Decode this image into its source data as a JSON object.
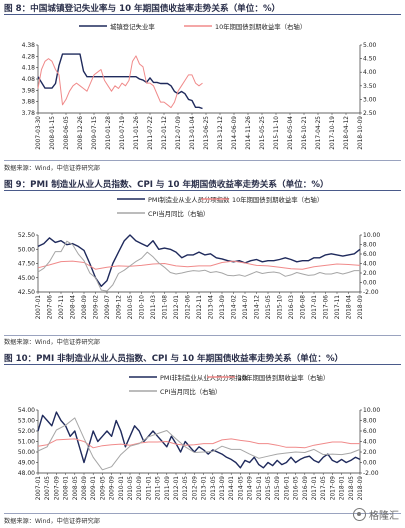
{
  "figures": [
    {
      "title": "图 8：中国城镇登记失业率与 10 年期国债收益率走势关系（单位：%）",
      "source": "数据来源：Wind，中信证券研究部"
    },
    {
      "title": "图 9：PMI 制造业从业人员指数、CPI 与 10 年期国债收益率走势关系（单位：%）",
      "source": "数据来源：Wind，中信证券研究部"
    },
    {
      "title": "图 10：PMI 非制造业从业人员指数、CPI 与 10 年期国债收益率走势关系（单位：%）",
      "source": "数据来源：Wind，中信证券研究部"
    }
  ],
  "watermark": {
    "text": "格隆汇",
    "icon": "circle-logo-icon"
  },
  "colors": {
    "navy": "#1f2a5c",
    "pink": "#f08a8a",
    "gray": "#a6a6a6",
    "axis": "#333333",
    "rule": "#4a5a8a"
  },
  "chart_data": [
    {
      "type": "line",
      "legend_position": "top-center",
      "left_axis": {
        "ylim": [
          3.78,
          4.38
        ],
        "ticks": [
          "3.78",
          "3.88",
          "3.98",
          "4.08",
          "4.18",
          "4.28",
          "4.38"
        ]
      },
      "right_axis": {
        "ylim": [
          2.5,
          5.0
        ],
        "ticks": [
          "2.50",
          "3.00",
          "3.50",
          "4.00",
          "4.50",
          "5.00"
        ]
      },
      "x_ticks": [
        "2007-03-30",
        "2008-01-15",
        "2008-06-05",
        "2008-12-26",
        "2009-07-15",
        "2010-01-28",
        "2010-07-19",
        "2011-01-26",
        "2011-07-22",
        "2012-01-12",
        "2012-07-09",
        "2013-01-04",
        "2013-06-25",
        "2013-12-12",
        "2014-06-09",
        "2014-11-26",
        "2015-05-25",
        "2015-11-10",
        "2016-05-04",
        "2016-10-21",
        "2017-04-25",
        "2017-10-19",
        "2018-04-12",
        "2018-10-09"
      ],
      "series": [
        {
          "name": "城镇登记失业率",
          "axis": "left",
          "color": "#1f2a5c",
          "style": "solid",
          "x": [
            0,
            0.5,
            1,
            1.25,
            1.5,
            1.75,
            2.0,
            2.25,
            2.5,
            2.75,
            3.0,
            3.25,
            3.5,
            3.75,
            4.0,
            4.25,
            4.5,
            4.75,
            5.0,
            5.25,
            5.5,
            5.75,
            6.0,
            6.25,
            6.5,
            6.75,
            7.0,
            7.25,
            7.5,
            7.75,
            8.0,
            8.25,
            8.5,
            8.75,
            9.0,
            9.25,
            9.5,
            9.75,
            10.0,
            10.25,
            10.5,
            10.75,
            11.0,
            11.25,
            11.5,
            11.75
          ],
          "values": [
            4.1,
            4.0,
            4.0,
            4.04,
            4.2,
            4.3,
            4.3,
            4.3,
            4.3,
            4.3,
            4.3,
            4.15,
            4.1,
            4.1,
            4.1,
            4.1,
            4.1,
            4.1,
            4.1,
            4.1,
            4.1,
            4.1,
            4.1,
            4.1,
            4.1,
            4.1,
            4.1,
            4.08,
            4.07,
            4.05,
            4.09,
            4.05,
            4.05,
            4.04,
            4.04,
            4.04,
            4.02,
            3.97,
            3.95,
            3.97,
            3.95,
            3.9,
            3.89,
            3.83,
            3.83,
            3.82
          ]
        },
        {
          "name": "10年期国债到期收益率（右轴）",
          "axis": "right",
          "color": "#f08a8a",
          "style": "solid",
          "x": [
            0,
            0.25,
            0.5,
            0.75,
            1.0,
            1.25,
            1.5,
            1.75,
            2.0,
            2.25,
            2.5,
            2.75,
            3.0,
            3.25,
            3.5,
            3.75,
            4.0,
            4.25,
            4.5,
            4.75,
            5.0,
            5.25,
            5.5,
            5.75,
            6.0,
            6.25,
            6.5,
            6.75,
            7.0,
            7.25,
            7.5,
            7.75,
            8.0,
            8.25,
            8.5,
            8.75,
            9.0,
            9.25,
            9.5,
            9.75,
            10.0,
            10.25,
            10.5,
            10.75,
            11.0,
            11.25,
            11.5,
            11.75
          ],
          "values": [
            3.4,
            4.1,
            4.4,
            4.5,
            4.4,
            4.1,
            3.9,
            2.8,
            3.0,
            3.3,
            3.5,
            3.6,
            3.5,
            3.4,
            3.3,
            3.6,
            3.9,
            4.0,
            4.1,
            3.7,
            3.5,
            3.3,
            3.5,
            3.4,
            3.6,
            3.5,
            3.7,
            4.4,
            4.6,
            4.3,
            4.2,
            3.6,
            3.6,
            3.5,
            3.2,
            2.9,
            2.9,
            2.8,
            2.7,
            2.9,
            3.3,
            3.5,
            3.7,
            3.9,
            3.9,
            3.6,
            3.5,
            3.6
          ]
        }
      ]
    },
    {
      "type": "line",
      "legend_position": "top-center",
      "left_axis": {
        "ylim": [
          42.5,
          52.5
        ],
        "ticks": [
          "42.50",
          "45.00",
          "47.50",
          "50.00",
          "52.50"
        ]
      },
      "right_axis": {
        "ylim": [
          -2.0,
          10.0
        ],
        "ticks": [
          "-2.00",
          "0.00",
          "2.00",
          "4.00",
          "6.00",
          "8.00",
          "10.00"
        ]
      },
      "x_ticks": [
        "2007-01",
        "2007-06",
        "2007-11",
        "2008-04",
        "2008-09",
        "2009-02",
        "2009-07",
        "2009-12",
        "2010-05",
        "2010-10",
        "2011-03",
        "2011-08",
        "2012-01",
        "2012-06",
        "2012-11",
        "2013-04",
        "2013-09",
        "2014-02",
        "2014-07",
        "2014-12",
        "2015-05",
        "2015-10",
        "2016-03",
        "2016-08",
        "2017-01",
        "2017-06",
        "2017-11",
        "2018-04",
        "2018-09"
      ],
      "series": [
        {
          "name": "PMI制造业从业人员分项指数",
          "axis": "left",
          "color": "#1f2a5c",
          "style": "solid",
          "x": [
            0,
            0.5,
            1,
            1.5,
            2,
            2.5,
            3,
            3.5,
            4,
            4.5,
            5,
            5.5,
            6,
            6.5,
            7,
            7.5,
            8,
            8.5,
            9,
            9.5,
            10,
            10.5,
            11,
            11.5,
            12,
            12.5,
            13,
            13.5,
            14,
            14.5,
            15,
            15.5,
            16,
            16.5,
            17,
            17.5,
            18,
            18.5,
            19,
            19.5,
            20,
            20.5,
            21,
            21.5,
            22,
            22.5,
            23,
            23.5,
            24,
            24.5,
            25,
            25.5,
            26,
            26.5,
            27,
            27.5,
            28
          ],
          "values": [
            50.5,
            51.0,
            52.0,
            51.2,
            51.5,
            50.8,
            51.0,
            50.5,
            49.8,
            47.5,
            45.0,
            43.5,
            44.5,
            47.5,
            49.5,
            51.5,
            52.5,
            51.5,
            51.0,
            50.5,
            51.5,
            50.0,
            50.2,
            50.0,
            49.5,
            48.5,
            49.0,
            49.0,
            49.5,
            49.0,
            49.2,
            48.5,
            48.3,
            48.0,
            47.8,
            48.0,
            47.6,
            48.0,
            48.2,
            47.8,
            48.0,
            48.0,
            48.2,
            48.5,
            48.2,
            47.8,
            48.0,
            48.0,
            48.5,
            48.5,
            49.0,
            49.2,
            49.0,
            48.8,
            49.0,
            49.2,
            50.0
          ]
        },
        {
          "name": "10年期国债到期收益率（右轴）",
          "axis": "right",
          "color": "#f08a8a",
          "style": "solid",
          "x": [
            0,
            1,
            2,
            3,
            4,
            5,
            6,
            7,
            8,
            9,
            10,
            11,
            12,
            13,
            14,
            15,
            16,
            17,
            18,
            19,
            20,
            21,
            22,
            23,
            24,
            25,
            26,
            27,
            28
          ],
          "values": [
            3.1,
            3.7,
            4.4,
            4.5,
            4.2,
            2.8,
            3.2,
            3.5,
            3.4,
            3.6,
            3.9,
            4.0,
            3.5,
            3.3,
            3.5,
            3.5,
            4.2,
            4.5,
            4.1,
            3.6,
            3.5,
            3.2,
            2.9,
            2.8,
            3.3,
            3.6,
            3.9,
            3.8,
            3.6
          ]
        },
        {
          "name": "CPI当月同比（右轴）",
          "axis": "right",
          "color": "#a6a6a6",
          "style": "solid",
          "x": [
            0,
            0.5,
            1,
            1.5,
            2,
            2.5,
            3,
            3.5,
            4,
            4.5,
            5,
            5.5,
            6,
            6.5,
            7,
            7.5,
            8,
            8.5,
            9,
            9.5,
            10,
            10.5,
            11,
            11.5,
            12,
            12.5,
            13,
            13.5,
            14,
            14.5,
            15,
            15.5,
            16,
            16.5,
            17,
            17.5,
            18,
            18.5,
            19,
            19.5,
            20,
            20.5,
            21,
            21.5,
            22,
            22.5,
            23,
            23.5,
            24,
            24.5,
            25,
            25.5,
            26,
            26.5,
            27,
            27.5,
            28
          ],
          "values": [
            2.2,
            3.0,
            4.4,
            6.5,
            6.5,
            8.7,
            8.0,
            6.0,
            4.6,
            2.0,
            1.0,
            -1.6,
            -1.8,
            -0.5,
            1.9,
            2.6,
            3.5,
            4.4,
            5.1,
            6.4,
            5.4,
            4.1,
            3.2,
            2.1,
            1.8,
            2.0,
            2.3,
            2.5,
            2.4,
            2.6,
            2.1,
            2.3,
            2.0,
            1.5,
            1.4,
            1.6,
            1.3,
            1.8,
            2.3,
            1.9,
            2.1,
            2.2,
            2.0,
            1.3,
            1.6,
            2.1,
            1.8,
            1.5,
            1.6,
            2.1,
            1.8,
            1.8,
            2.1,
            1.8,
            2.1,
            2.5,
            2.5
          ]
        }
      ]
    },
    {
      "type": "line",
      "legend_position": "top-center",
      "left_axis": {
        "ylim": [
          48.0,
          54.0
        ],
        "ticks": [
          "48.00",
          "49.00",
          "50.00",
          "51.00",
          "52.00",
          "53.00",
          "54.00"
        ]
      },
      "right_axis": {
        "ylim": [
          -2.0,
          10.0
        ],
        "ticks": [
          "-2.00",
          "0.00",
          "2.00",
          "4.00",
          "6.00",
          "8.00",
          "10.00"
        ]
      },
      "x_ticks": [
        "2007-01",
        "2007-05",
        "2007-09",
        "2008-01",
        "2008-05",
        "2008-09",
        "2009-01",
        "2009-05",
        "2009-09",
        "2010-01",
        "2010-05",
        "2010-09",
        "2011-01",
        "2011-05",
        "2011-09",
        "2012-01",
        "2012-05",
        "2012-09",
        "2013-01",
        "2013-05",
        "2013-09",
        "2014-01",
        "2014-05",
        "2014-09",
        "2015-01",
        "2015-05",
        "2015-09",
        "2016-01",
        "2016-05",
        "2016-09",
        "2017-01",
        "2017-05",
        "2017-09",
        "2018-01",
        "2018-05",
        "2018-09"
      ],
      "series": [
        {
          "name": "PMI非制造业从业人员分项指数",
          "axis": "left",
          "color": "#1f2a5c",
          "style": "solid",
          "x": [
            0,
            0.5,
            1,
            1.5,
            2,
            2.5,
            3,
            3.5,
            4,
            4.5,
            5,
            5.5,
            6,
            6.5,
            7,
            7.5,
            8,
            8.5,
            9,
            9.5,
            10,
            10.5,
            11,
            11.5,
            12,
            12.5,
            13,
            13.5,
            14,
            14.5,
            15,
            15.5,
            16,
            16.5,
            17,
            17.5,
            18,
            18.5,
            19,
            19.5,
            20,
            20.5,
            21,
            21.5,
            22,
            22.5,
            23,
            23.5,
            24,
            24.5,
            25,
            25.5,
            26,
            26.5,
            27,
            27.5,
            28,
            28.5,
            29,
            29.5,
            30,
            30.5,
            31,
            31.5,
            32,
            32.5,
            33,
            33.5,
            34,
            34.5,
            35
          ],
          "values": [
            52.0,
            53.5,
            53.0,
            52.5,
            53.8,
            53.0,
            52.5,
            51.5,
            52.0,
            50.5,
            49.0,
            50.5,
            52.0,
            51.0,
            51.5,
            52.0,
            51.5,
            53.0,
            52.0,
            50.5,
            51.5,
            52.5,
            52.0,
            51.0,
            51.5,
            52.0,
            51.5,
            51.0,
            50.5,
            51.5,
            50.8,
            50.0,
            51.0,
            50.5,
            50.0,
            50.5,
            50.2,
            49.8,
            50.2,
            50.0,
            49.8,
            49.5,
            49.3,
            49.0,
            48.5,
            49.2,
            49.0,
            49.5,
            48.8,
            48.5,
            49.0,
            48.7,
            49.2,
            48.8,
            49.0,
            49.5,
            49.0,
            49.3,
            49.5,
            49.6,
            49.2,
            49.0,
            49.5,
            49.8,
            49.2,
            49.0,
            49.3,
            49.0,
            49.2,
            49.5,
            49.3
          ]
        },
        {
          "name": "10年期国债到期收益率（右轴）",
          "axis": "right",
          "color": "#f08a8a",
          "style": "solid",
          "x": [
            0,
            1,
            2,
            3,
            4,
            5,
            6,
            7,
            8,
            9,
            10,
            11,
            12,
            13,
            14,
            15,
            16,
            17,
            18,
            19,
            20,
            21,
            22,
            23,
            24,
            25,
            26,
            27,
            28,
            29,
            30,
            31,
            32,
            33,
            34,
            35
          ],
          "values": [
            3.1,
            3.4,
            4.3,
            4.4,
            4.5,
            4.0,
            2.8,
            3.2,
            3.4,
            3.5,
            3.3,
            3.7,
            3.9,
            3.9,
            4.0,
            3.5,
            3.3,
            3.4,
            3.6,
            3.6,
            4.3,
            4.5,
            4.2,
            4.0,
            3.6,
            3.6,
            3.3,
            2.9,
            2.9,
            2.8,
            3.3,
            3.6,
            3.9,
            3.9,
            3.6,
            3.6
          ]
        },
        {
          "name": "CPI当月同比（右轴）",
          "axis": "right",
          "color": "#a6a6a6",
          "style": "solid",
          "x": [
            0,
            1,
            2,
            3,
            4,
            5,
            6,
            7,
            8,
            9,
            10,
            11,
            12,
            13,
            14,
            15,
            16,
            17,
            18,
            19,
            20,
            21,
            22,
            23,
            24,
            25,
            26,
            27,
            28,
            29,
            30,
            31,
            32,
            33,
            34,
            35
          ],
          "values": [
            2.2,
            3.0,
            6.2,
            7.1,
            8.5,
            4.6,
            1.0,
            -1.4,
            -0.8,
            1.5,
            3.1,
            3.6,
            4.9,
            5.5,
            6.1,
            4.5,
            3.0,
            1.9,
            2.0,
            2.1,
            3.1,
            2.5,
            2.5,
            1.6,
            0.8,
            1.2,
            1.6,
            1.8,
            2.0,
            1.9,
            2.5,
            1.5,
            1.6,
            1.5,
            1.8,
            2.5
          ]
        }
      ]
    }
  ]
}
